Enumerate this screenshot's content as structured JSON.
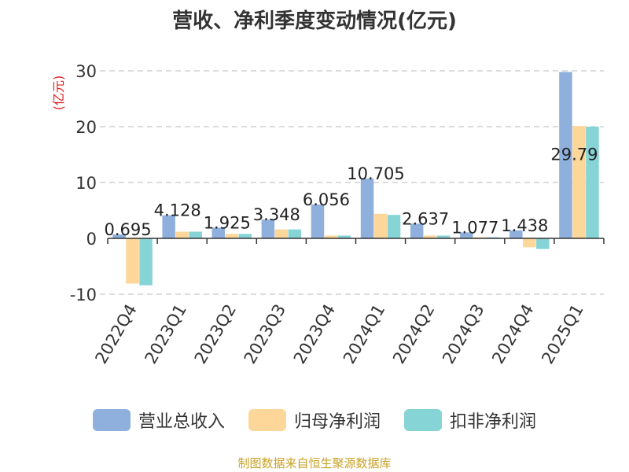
{
  "chart_data": {
    "type": "bar",
    "title": "营收、净利季度变动情况(亿元)",
    "ylabel": "(亿元)",
    "ylim": [
      -10,
      30
    ],
    "yticks": [
      -10,
      0,
      10,
      20,
      30
    ],
    "grid": true,
    "legend_position": "bottom",
    "categories": [
      "2022Q4",
      "2023Q1",
      "2023Q2",
      "2023Q3",
      "2023Q4",
      "2024Q1",
      "2024Q2",
      "2024Q3",
      "2024Q4",
      "2025Q1"
    ],
    "series": [
      {
        "name": "营业总收入",
        "color": "#8fb0dc",
        "values": [
          0.695,
          4.128,
          1.925,
          3.348,
          6.056,
          10.705,
          2.637,
          1.077,
          1.438,
          29.79
        ],
        "labels": [
          "0.695",
          "4.128",
          "1.925",
          "3.348",
          "6.056",
          "10.705",
          "2.637",
          "1.077",
          "1.438",
          "29.79"
        ]
      },
      {
        "name": "归母净利润",
        "color": "#fdd699",
        "values": [
          -8.1,
          1.2,
          0.8,
          1.6,
          0.5,
          4.4,
          0.5,
          0.2,
          -1.6,
          20.1
        ]
      },
      {
        "name": "扣非净利润",
        "color": "#86d4d6",
        "values": [
          -8.4,
          1.2,
          0.8,
          1.6,
          0.5,
          4.2,
          0.5,
          0.2,
          -1.9,
          20.0
        ]
      }
    ]
  },
  "source": "制图数据来自恒生聚源数据库"
}
